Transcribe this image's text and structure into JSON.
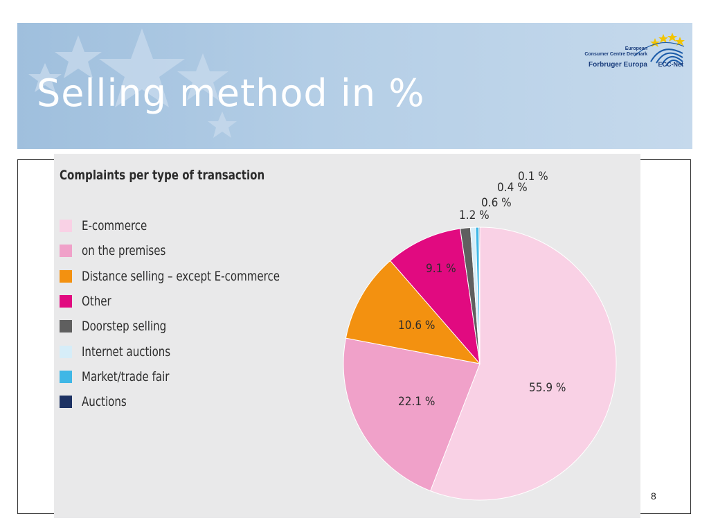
{
  "slide": {
    "title": "Selling method in %",
    "page_number": "8"
  },
  "logo": {
    "line1": "European",
    "line2": "Consumer Centre Denmark",
    "line3": "Forbruger Europa",
    "line4": "ECC-Net"
  },
  "colors": {
    "banner": "#a9c6e2",
    "panel": "#e9e9ea"
  },
  "chart_data": {
    "type": "pie",
    "title": "Complaints per type of transaction",
    "legend_position": "left",
    "series": [
      {
        "name": "E-commerce",
        "value": 55.9,
        "label": "55.9 %",
        "color": "#f9d1e5"
      },
      {
        "name": "on the premises",
        "value": 22.1,
        "label": "22.1 %",
        "color": "#f0a1c9"
      },
      {
        "name": "Distance selling – except E-commerce",
        "value": 10.6,
        "label": "10.6 %",
        "color": "#f39110"
      },
      {
        "name": "Other",
        "value": 9.1,
        "label": "9.1 %",
        "color": "#e10a80"
      },
      {
        "name": "Doorstep selling",
        "value": 1.2,
        "label": "1.2 %",
        "color": "#5f5f5f"
      },
      {
        "name": "Internet auctions",
        "value": 0.6,
        "label": "0.6 %",
        "color": "#d6edf8"
      },
      {
        "name": "Market/trade fair",
        "value": 0.4,
        "label": "0.4 %",
        "color": "#3fb7e6"
      },
      {
        "name": "Auctions",
        "value": 0.1,
        "label": "0.1 %",
        "color": "#1d3263"
      }
    ]
  }
}
